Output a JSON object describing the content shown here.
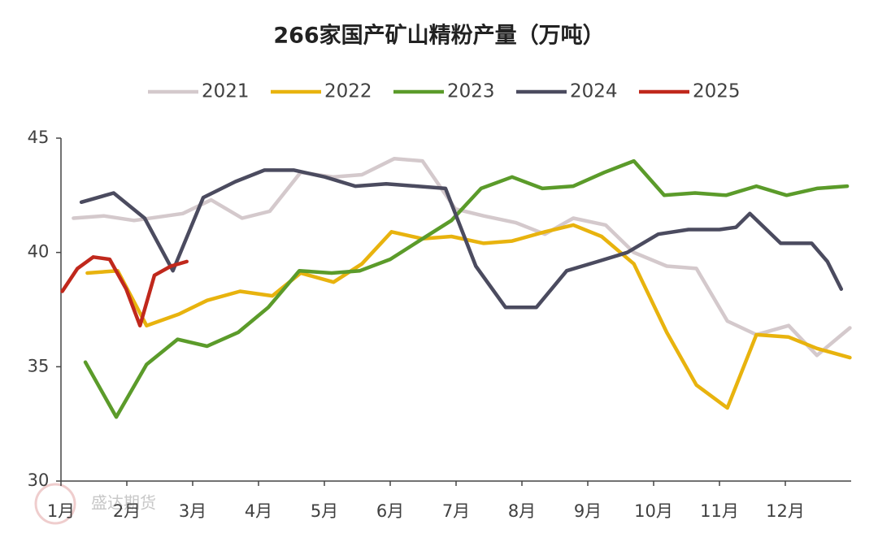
{
  "chart_data": {
    "type": "line",
    "title": "266家国产矿山精粉产量（万吨）",
    "watermark": "盛达期货",
    "xlim": [
      0,
      12
    ],
    "xticks": [
      {
        "value": 0,
        "label": "1月"
      },
      {
        "value": 1,
        "label": "2月"
      },
      {
        "value": 2,
        "label": "3月"
      },
      {
        "value": 3,
        "label": "4月"
      },
      {
        "value": 4,
        "label": "5月"
      },
      {
        "value": 5,
        "label": "6月"
      },
      {
        "value": 6,
        "label": "7月"
      },
      {
        "value": 7,
        "label": "8月"
      },
      {
        "value": 8,
        "label": "9月"
      },
      {
        "value": 9,
        "label": "10月"
      },
      {
        "value": 10,
        "label": "11月"
      },
      {
        "value": 11,
        "label": "12月"
      }
    ],
    "ylim": [
      30,
      45
    ],
    "yticks": [
      30,
      35,
      40,
      45
    ],
    "grid": false,
    "legend": "top",
    "series": [
      {
        "name": "2021",
        "color": "#d4c9cc",
        "x": [
          0.19,
          0.65,
          1.11,
          1.85,
          2.28,
          2.75,
          3.17,
          3.64,
          4.14,
          4.57,
          5.06,
          5.49,
          5.99,
          6.42,
          6.91,
          7.35,
          7.78,
          8.27,
          8.7,
          9.2,
          9.65,
          10.12,
          10.56,
          11.05,
          11.48,
          11.98
        ],
        "values": [
          41.5,
          41.6,
          41.4,
          41.7,
          42.3,
          41.5,
          41.8,
          43.5,
          43.3,
          43.4,
          44.1,
          44.0,
          41.9,
          41.6,
          41.3,
          40.8,
          41.5,
          41.2,
          40.0,
          39.4,
          39.3,
          37.0,
          36.4,
          36.8,
          35.5,
          36.7
        ]
      },
      {
        "name": "2022",
        "color": "#e8b30e",
        "x": [
          0.4,
          0.86,
          1.3,
          1.79,
          2.22,
          2.72,
          3.21,
          3.64,
          4.14,
          4.57,
          5.02,
          5.49,
          5.93,
          6.42,
          6.85,
          7.35,
          7.78,
          8.21,
          8.7,
          9.2,
          9.65,
          10.12,
          10.56,
          11.05,
          11.48,
          11.98
        ],
        "values": [
          39.1,
          39.2,
          36.8,
          37.3,
          37.9,
          38.3,
          38.1,
          39.1,
          38.7,
          39.5,
          40.9,
          40.6,
          40.7,
          40.4,
          40.5,
          40.9,
          41.2,
          40.7,
          39.5,
          36.5,
          34.2,
          33.2,
          36.4,
          36.3,
          35.8,
          35.4
        ]
      },
      {
        "name": "2023",
        "color": "#5b9b2a",
        "x": [
          0.37,
          0.84,
          1.3,
          1.77,
          2.22,
          2.69,
          3.15,
          3.62,
          4.11,
          4.54,
          5.0,
          5.49,
          5.93,
          6.38,
          6.85,
          7.31,
          7.78,
          8.25,
          8.7,
          9.16,
          9.63,
          10.1,
          10.56,
          11.02,
          11.48,
          11.94
        ],
        "values": [
          35.2,
          32.8,
          35.1,
          36.2,
          35.9,
          36.5,
          37.6,
          39.2,
          39.1,
          39.2,
          39.7,
          40.6,
          41.4,
          42.8,
          43.3,
          42.8,
          42.9,
          43.5,
          44.0,
          42.5,
          42.6,
          42.5,
          42.9,
          42.5,
          42.8,
          42.9
        ]
      },
      {
        "name": "2024",
        "color": "#4b4b5f",
        "x": [
          0.31,
          0.8,
          1.27,
          1.7,
          2.16,
          2.65,
          3.09,
          3.54,
          4.01,
          4.47,
          4.94,
          5.4,
          5.84,
          6.3,
          6.75,
          7.22,
          7.68,
          8.15,
          8.6,
          9.07,
          9.53,
          10.0,
          10.25,
          10.46,
          10.93,
          11.4,
          11.64,
          11.85
        ],
        "values": [
          42.2,
          42.6,
          41.5,
          39.2,
          42.4,
          43.1,
          43.6,
          43.6,
          43.3,
          42.9,
          43.0,
          42.9,
          42.8,
          39.4,
          37.6,
          37.6,
          39.2,
          39.6,
          40.0,
          40.8,
          41.0,
          41.0,
          41.1,
          41.7,
          40.4,
          40.4,
          39.6,
          38.4
        ]
      },
      {
        "name": "2025",
        "color": "#c0281c",
        "x": [
          0.02,
          0.25,
          0.49,
          0.74,
          0.99,
          1.2,
          1.42,
          1.67,
          1.91
        ],
        "values": [
          38.3,
          39.3,
          39.8,
          39.7,
          38.4,
          36.8,
          39.0,
          39.4,
          39.6
        ]
      }
    ]
  }
}
